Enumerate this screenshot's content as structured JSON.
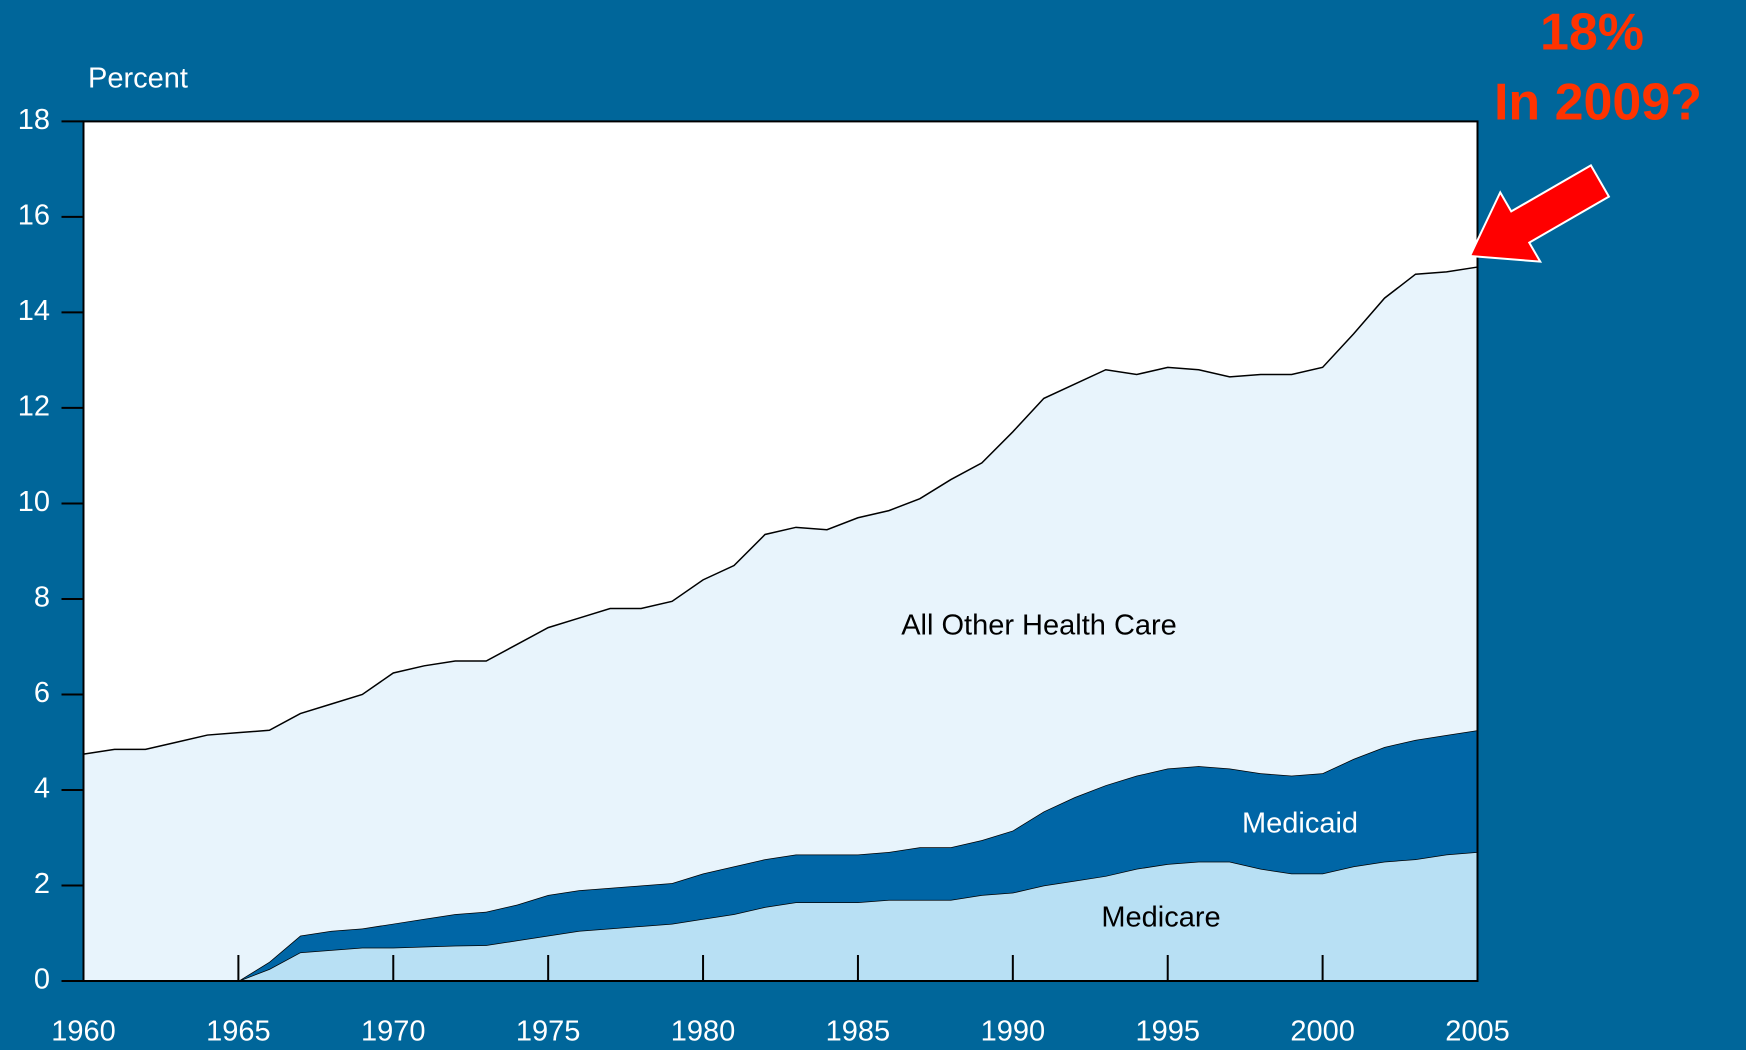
{
  "chart_data": {
    "type": "stacked-area",
    "ylabel": "Percent",
    "annotations": [
      "18%",
      "In 2009?"
    ],
    "x": [
      1960,
      1961,
      1962,
      1963,
      1964,
      1965,
      1966,
      1967,
      1968,
      1969,
      1970,
      1971,
      1972,
      1973,
      1974,
      1975,
      1976,
      1977,
      1978,
      1979,
      1980,
      1981,
      1982,
      1983,
      1984,
      1985,
      1986,
      1987,
      1988,
      1989,
      1990,
      1991,
      1992,
      1993,
      1994,
      1995,
      1996,
      1997,
      1998,
      1999,
      2000,
      2001,
      2002,
      2003,
      2004,
      2005
    ],
    "series": [
      {
        "name": "Medicare",
        "color": "#b8e0f4",
        "values": [
          0,
          0,
          0,
          0,
          0,
          0,
          0.25,
          0.6,
          0.65,
          0.7,
          0.7,
          0.72,
          0.74,
          0.75,
          0.85,
          0.95,
          1.05,
          1.1,
          1.15,
          1.2,
          1.3,
          1.4,
          1.55,
          1.65,
          1.65,
          1.65,
          1.7,
          1.7,
          1.7,
          1.8,
          1.85,
          2.0,
          2.1,
          2.2,
          2.35,
          2.45,
          2.5,
          2.5,
          2.35,
          2.25,
          2.25,
          2.4,
          2.5,
          2.55,
          2.65,
          2.7
        ]
      },
      {
        "name": "Medicaid",
        "color": "#0066a6",
        "values": [
          0,
          0,
          0,
          0,
          0,
          0,
          0.15,
          0.35,
          0.4,
          0.4,
          0.5,
          0.58,
          0.66,
          0.7,
          0.75,
          0.85,
          0.85,
          0.85,
          0.85,
          0.85,
          0.95,
          1.0,
          1.0,
          1.0,
          1.0,
          1.0,
          1.0,
          1.1,
          1.1,
          1.15,
          1.3,
          1.55,
          1.75,
          1.9,
          1.95,
          2.0,
          2.0,
          1.95,
          2.0,
          2.05,
          2.1,
          2.25,
          2.4,
          2.5,
          2.5,
          2.55
        ]
      },
      {
        "name": "All Other Health Care",
        "color": "#e8f4fc",
        "values": [
          4.75,
          4.85,
          4.85,
          5.0,
          5.15,
          5.2,
          4.85,
          4.65,
          4.75,
          4.9,
          5.25,
          5.3,
          5.3,
          5.25,
          5.45,
          5.6,
          5.7,
          5.85,
          5.8,
          5.9,
          6.15,
          6.3,
          6.8,
          6.85,
          6.8,
          7.05,
          7.15,
          7.3,
          7.7,
          7.9,
          8.35,
          8.65,
          8.65,
          8.7,
          8.4,
          8.4,
          8.3,
          8.2,
          8.35,
          8.4,
          8.5,
          8.9,
          9.4,
          9.75,
          9.7,
          9.7
        ]
      }
    ],
    "xlim": [
      1960,
      2005
    ],
    "xticks": [
      1960,
      1965,
      1970,
      1975,
      1980,
      1985,
      1990,
      1995,
      2000,
      2005
    ],
    "ylim": [
      0,
      18
    ],
    "yticks": [
      0,
      2,
      4,
      6,
      8,
      10,
      12,
      14,
      16,
      18
    ]
  }
}
